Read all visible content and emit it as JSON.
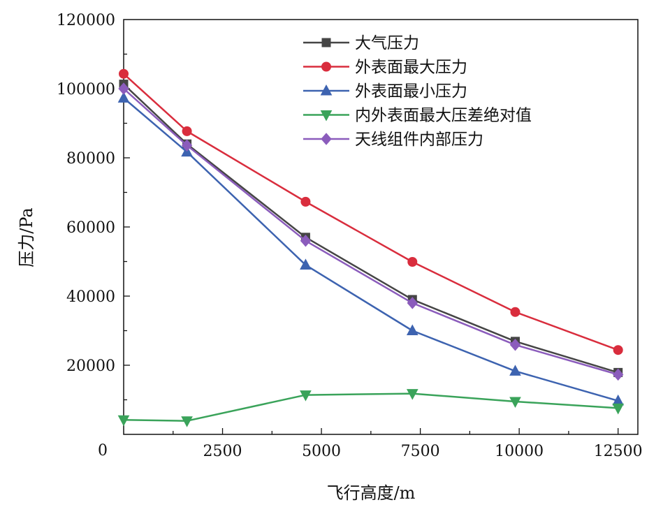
{
  "chart_data": {
    "type": "line",
    "xlabel": "飞行高度/m",
    "ylabel": "压力/Pa",
    "xlim": [
      0,
      13000
    ],
    "ylim": [
      0,
      120000
    ],
    "x_ticks": [
      0,
      2500,
      5000,
      7500,
      10000,
      12500
    ],
    "y_ticks": [
      20000,
      40000,
      60000,
      80000,
      100000,
      120000
    ],
    "x_tick_labels": [
      "0",
      "2500",
      "5000",
      "7500",
      "10000",
      "12500"
    ],
    "y_tick_labels": [
      "20000",
      "40000",
      "60000",
      "80000",
      "100000",
      "120000"
    ],
    "x": [
      0,
      1600,
      4600,
      7300,
      9900,
      12500
    ],
    "grid": false,
    "legend_position": "top-right",
    "series": [
      {
        "name": "大气压力",
        "color": "#454545",
        "marker": "square",
        "values": [
          101300,
          84000,
          57000,
          39000,
          26900,
          17900
        ]
      },
      {
        "name": "外表面最大压力",
        "color": "#d92d3d",
        "marker": "circle",
        "values": [
          104300,
          87700,
          67300,
          49900,
          35400,
          24400
        ]
      },
      {
        "name": "外表面最小压力",
        "color": "#3d63b0",
        "marker": "triangle-up",
        "values": [
          97300,
          81700,
          49000,
          30000,
          18300,
          9700
        ]
      },
      {
        "name": "内外表面最大压差绝对值",
        "color": "#3aa35a",
        "marker": "triangle-down",
        "values": [
          4200,
          3900,
          11400,
          11800,
          9500,
          7600
        ]
      },
      {
        "name": "天线组件内部压力",
        "color": "#8b5cbc",
        "marker": "diamond",
        "values": [
          100000,
          83600,
          56000,
          38000,
          25900,
          17300
        ]
      }
    ]
  }
}
